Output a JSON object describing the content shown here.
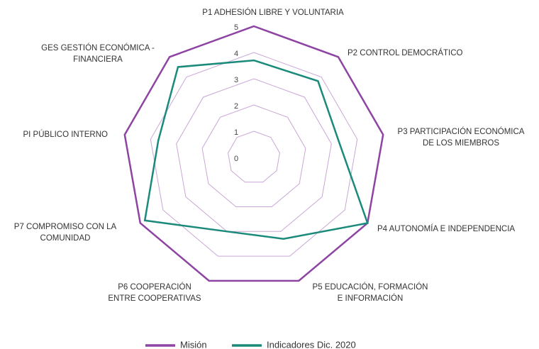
{
  "chart_data": {
    "type": "radar",
    "categories": [
      "P1 ADHESIÓN LIBRE Y VOLUNTARIA",
      "P2 CONTROL DEMOCRÁTICO",
      "P3 PARTICIPACIÓN ECONÓMICA\nDE LOS MIEMBROS",
      "P4 AUTONOMÍA E INDEPENDENCIA",
      "P5 EDUCACIÓN, FORMACIÓN\nE INFORMACIÓN",
      "P6 COOPERACIÓN\nENTRE COOPERATIVAS",
      "P7 COMPROMISO CON LA\nCOMUNIDAD",
      "PI PÚBLICO INTERNO",
      "GES GESTIÓN ECONÓMICA -\nFINANCIERA"
    ],
    "series": [
      {
        "name": "Misión",
        "color": "#8e44a3",
        "values": [
          5,
          5,
          5,
          5,
          5,
          5,
          5,
          5,
          5
        ]
      },
      {
        "name": "Indicadores Dic. 2020",
        "color": "#1a8a7a",
        "values": [
          3.7,
          3.8,
          3.3,
          5,
          3.3,
          3,
          4.8,
          3.7,
          4.5
        ]
      }
    ],
    "ylim": [
      0,
      5
    ],
    "yticks": [
      0,
      1,
      2,
      3,
      4,
      5
    ],
    "grid": true,
    "grid_color": "#c9a6d6",
    "legend": "bottom"
  }
}
